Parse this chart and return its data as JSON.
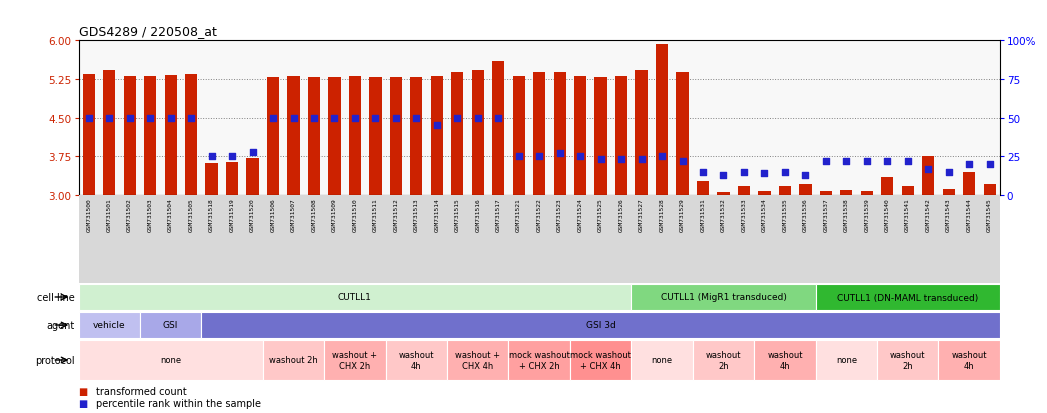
{
  "title": "GDS4289 / 220508_at",
  "samples": [
    "GSM731500",
    "GSM731501",
    "GSM731502",
    "GSM731503",
    "GSM731504",
    "GSM731505",
    "GSM731518",
    "GSM731519",
    "GSM731520",
    "GSM731506",
    "GSM731507",
    "GSM731508",
    "GSM731509",
    "GSM731510",
    "GSM731511",
    "GSM731512",
    "GSM731513",
    "GSM731514",
    "GSM731515",
    "GSM731516",
    "GSM731517",
    "GSM731521",
    "GSM731522",
    "GSM731523",
    "GSM731524",
    "GSM731525",
    "GSM731526",
    "GSM731527",
    "GSM731528",
    "GSM731529",
    "GSM731531",
    "GSM731532",
    "GSM731533",
    "GSM731534",
    "GSM731535",
    "GSM731536",
    "GSM731537",
    "GSM731538",
    "GSM731539",
    "GSM731540",
    "GSM731541",
    "GSM731542",
    "GSM731543",
    "GSM731544",
    "GSM731545"
  ],
  "bar_values": [
    5.35,
    5.42,
    5.3,
    5.3,
    5.32,
    5.35,
    3.62,
    3.63,
    3.72,
    5.28,
    5.3,
    5.28,
    5.28,
    5.3,
    5.28,
    5.28,
    5.28,
    5.3,
    5.38,
    5.42,
    5.6,
    5.3,
    5.38,
    5.38,
    5.3,
    5.28,
    5.3,
    5.42,
    5.92,
    5.38,
    3.28,
    3.05,
    3.18,
    3.08,
    3.18,
    3.22,
    3.08,
    3.1,
    3.08,
    3.35,
    3.18,
    3.75,
    3.12,
    3.45,
    3.22
  ],
  "dot_values": [
    50,
    50,
    50,
    50,
    50,
    50,
    25,
    25,
    28,
    50,
    50,
    50,
    50,
    50,
    50,
    50,
    50,
    45,
    50,
    50,
    50,
    25,
    25,
    27,
    25,
    23,
    23,
    23,
    25,
    22,
    15,
    13,
    15,
    14,
    15,
    13,
    22,
    22,
    22,
    22,
    22,
    17,
    15,
    20,
    20
  ],
  "ylim": [
    3.0,
    6.0
  ],
  "yticks": [
    3.0,
    3.75,
    4.5,
    5.25,
    6.0
  ],
  "y2lim": [
    0,
    100
  ],
  "y2ticks": [
    0,
    25,
    50,
    75,
    100
  ],
  "bar_color": "#cc2200",
  "dot_color": "#2222cc",
  "cell_line_groups": [
    {
      "label": "CUTLL1",
      "start": 0,
      "end": 27,
      "color": "#d0f0d0"
    },
    {
      "label": "CUTLL1 (MigR1 transduced)",
      "start": 27,
      "end": 36,
      "color": "#80d880"
    },
    {
      "label": "CUTLL1 (DN-MAML transduced)",
      "start": 36,
      "end": 45,
      "color": "#30b830"
    }
  ],
  "agent_groups": [
    {
      "label": "vehicle",
      "start": 0,
      "end": 3,
      "color": "#c0c0f0"
    },
    {
      "label": "GSI",
      "start": 3,
      "end": 6,
      "color": "#a8a8e8"
    },
    {
      "label": "GSI 3d",
      "start": 6,
      "end": 45,
      "color": "#7070cc"
    }
  ],
  "protocol_groups": [
    {
      "label": "none",
      "start": 0,
      "end": 9,
      "color": "#ffe0e0"
    },
    {
      "label": "washout 2h",
      "start": 9,
      "end": 12,
      "color": "#ffc8c8"
    },
    {
      "label": "washout +\nCHX 2h",
      "start": 12,
      "end": 15,
      "color": "#ffb0b0"
    },
    {
      "label": "washout\n4h",
      "start": 15,
      "end": 18,
      "color": "#ffc8c8"
    },
    {
      "label": "washout +\nCHX 4h",
      "start": 18,
      "end": 21,
      "color": "#ffb0b0"
    },
    {
      "label": "mock washout\n+ CHX 2h",
      "start": 21,
      "end": 24,
      "color": "#ffa0a0"
    },
    {
      "label": "mock washout\n+ CHX 4h",
      "start": 24,
      "end": 27,
      "color": "#ff9090"
    },
    {
      "label": "none",
      "start": 27,
      "end": 30,
      "color": "#ffe0e0"
    },
    {
      "label": "washout\n2h",
      "start": 30,
      "end": 33,
      "color": "#ffc8c8"
    },
    {
      "label": "washout\n4h",
      "start": 33,
      "end": 36,
      "color": "#ffb0b0"
    },
    {
      "label": "none",
      "start": 36,
      "end": 39,
      "color": "#ffe0e0"
    },
    {
      "label": "washout\n2h",
      "start": 39,
      "end": 42,
      "color": "#ffc8c8"
    },
    {
      "label": "washout\n4h",
      "start": 42,
      "end": 45,
      "color": "#ffb0b0"
    }
  ]
}
